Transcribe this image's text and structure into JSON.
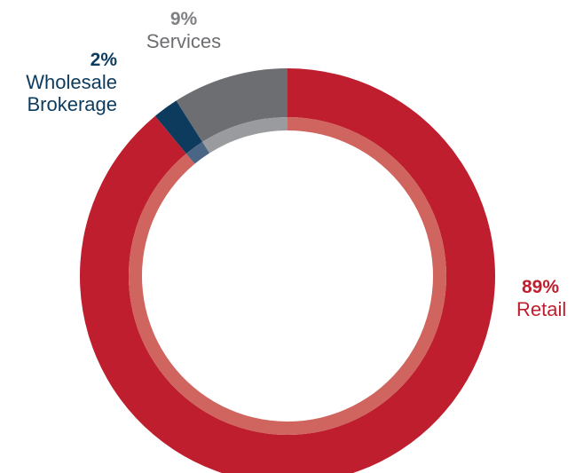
{
  "chart_data": {
    "type": "pie",
    "donut": true,
    "segments": [
      {
        "key": "retail",
        "name": "Retail",
        "value": 89,
        "label": "89%",
        "color": "#BE1E2D",
        "inner_color": "#D0645E"
      },
      {
        "key": "wholesale",
        "name": "Wholesale\nBrokerage",
        "name_lines": [
          "Wholesale",
          "Brokerage"
        ],
        "value": 2,
        "label": "2%",
        "color": "#0D3B5E",
        "inner_color": "#4B6684"
      },
      {
        "key": "services",
        "name": "Services",
        "value": 9,
        "label": "9%",
        "color": "#6D6E72",
        "inner_color": "#9A9B9F"
      }
    ],
    "legend": "none",
    "label_colors": {
      "retail": "#BE1E2D",
      "wholesale": "#0D3B5E",
      "services": "#6D6E72",
      "services_percent": "#7F8083"
    }
  }
}
